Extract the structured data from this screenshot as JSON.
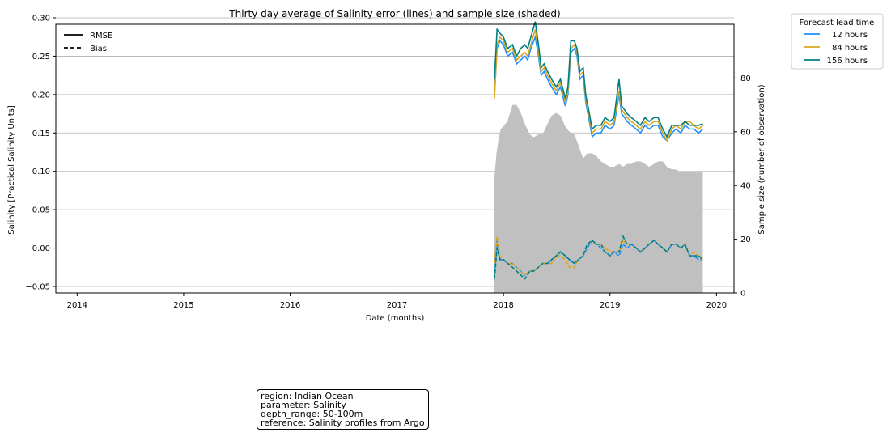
{
  "chart_data": {
    "type": "line",
    "title": "Thirty day average of Salinity error (lines) and sample size (shaded)",
    "xlabel": "Date (months)",
    "ylabel": "Salinity [Practical Salinity Units]",
    "y2label": "Sample size (number of observation)",
    "xlim": [
      "2013-10-20",
      "2020-03-01"
    ],
    "ylim": [
      -0.05,
      0.3
    ],
    "y2lim": [
      0,
      100
    ],
    "x_ticks": [
      "2014",
      "2015",
      "2016",
      "2017",
      "2018",
      "2019",
      "2020"
    ],
    "y_ticks": [
      "−0.05",
      "0.00",
      "0.05",
      "0.10",
      "0.15",
      "0.20",
      "0.25",
      "0.30"
    ],
    "y2_ticks": [
      "0",
      "20",
      "40",
      "60",
      "80"
    ],
    "grid": "horizontal",
    "metric_legend": {
      "placement": "top-left",
      "entries": [
        "RMSE",
        "Bias"
      ]
    },
    "series_legend": {
      "title": "Forecast lead time",
      "placement": "outside-top-right"
    },
    "colors": {
      "12 hours": "#1e90ff",
      "84 hours": "#daa520",
      "156 hours": "#008080",
      "sample": "#c0c0c0"
    },
    "sample_size": {
      "x": [
        "2017-12-01",
        "2017-12-08",
        "2017-12-15",
        "2017-12-22",
        "2018-01-01",
        "2018-01-15",
        "2018-02-01",
        "2018-02-15",
        "2018-03-01",
        "2018-03-15",
        "2018-04-01",
        "2018-04-15",
        "2018-05-01",
        "2018-05-15",
        "2018-06-01",
        "2018-06-15",
        "2018-07-01",
        "2018-07-15",
        "2018-08-01",
        "2018-08-15",
        "2018-09-01",
        "2018-09-15",
        "2018-10-01",
        "2018-10-15",
        "2018-11-01",
        "2018-11-15",
        "2018-12-01",
        "2018-12-15",
        "2019-01-01",
        "2019-01-15",
        "2019-02-01",
        "2019-02-15",
        "2019-03-01",
        "2019-03-15",
        "2019-04-01",
        "2019-04-15",
        "2019-05-01",
        "2019-05-15",
        "2019-06-01",
        "2019-06-15",
        "2019-07-01",
        "2019-07-15",
        "2019-08-01",
        "2019-08-15",
        "2019-09-01",
        "2019-09-15",
        "2019-10-01",
        "2019-10-15",
        "2019-11-01",
        "2019-11-15"
      ],
      "values": [
        43,
        52,
        57,
        61,
        62,
        64,
        70,
        70,
        67,
        63,
        59,
        58,
        59,
        59,
        63,
        66,
        67,
        66,
        62,
        60,
        59,
        55,
        50,
        52,
        52,
        51,
        49,
        48,
        47,
        47,
        48,
        47,
        48,
        48,
        49,
        49,
        48,
        47,
        48,
        49,
        49,
        47,
        46,
        46,
        45,
        45,
        45,
        45,
        45,
        45
      ]
    },
    "series": [
      {
        "name": "12 hours",
        "metric": "RMSE",
        "x": [
          "2017-12-01",
          "2017-12-10",
          "2017-12-20",
          "2018-01-01",
          "2018-01-15",
          "2018-02-01",
          "2018-02-15",
          "2018-03-01",
          "2018-03-15",
          "2018-03-25",
          "2018-04-05",
          "2018-04-20",
          "2018-05-01",
          "2018-05-10",
          "2018-05-20",
          "2018-06-01",
          "2018-06-15",
          "2018-07-01",
          "2018-07-15",
          "2018-08-01",
          "2018-08-10",
          "2018-08-20",
          "2018-09-01",
          "2018-09-10",
          "2018-09-20",
          "2018-10-01",
          "2018-10-10",
          "2018-10-20",
          "2018-11-01",
          "2018-11-15",
          "2018-12-01",
          "2018-12-15",
          "2019-01-01",
          "2019-01-15",
          "2019-02-01",
          "2019-02-10",
          "2019-02-20",
          "2019-03-01",
          "2019-03-15",
          "2019-04-01",
          "2019-04-15",
          "2019-05-01",
          "2019-05-15",
          "2019-06-01",
          "2019-06-15",
          "2019-07-01",
          "2019-07-15",
          "2019-08-01",
          "2019-08-15",
          "2019-09-01",
          "2019-09-15",
          "2019-10-01",
          "2019-10-15",
          "2019-11-01",
          "2019-11-15"
        ],
        "values": [
          0.2,
          0.26,
          0.27,
          0.265,
          0.25,
          0.255,
          0.24,
          0.245,
          0.25,
          0.245,
          0.26,
          0.275,
          0.25,
          0.225,
          0.23,
          0.22,
          0.21,
          0.2,
          0.21,
          0.185,
          0.2,
          0.255,
          0.26,
          0.25,
          0.22,
          0.225,
          0.19,
          0.17,
          0.145,
          0.15,
          0.15,
          0.16,
          0.155,
          0.16,
          0.2,
          0.175,
          0.17,
          0.165,
          0.16,
          0.155,
          0.15,
          0.16,
          0.155,
          0.16,
          0.16,
          0.145,
          0.14,
          0.15,
          0.155,
          0.15,
          0.16,
          0.155,
          0.155,
          0.15,
          0.155
        ]
      },
      {
        "name": "84 hours",
        "metric": "RMSE",
        "x": [
          "2017-12-01",
          "2017-12-10",
          "2017-12-20",
          "2018-01-01",
          "2018-01-15",
          "2018-02-01",
          "2018-02-15",
          "2018-03-01",
          "2018-03-15",
          "2018-03-25",
          "2018-04-05",
          "2018-04-20",
          "2018-05-01",
          "2018-05-10",
          "2018-05-20",
          "2018-06-01",
          "2018-06-15",
          "2018-07-01",
          "2018-07-15",
          "2018-08-01",
          "2018-08-10",
          "2018-08-20",
          "2018-09-01",
          "2018-09-10",
          "2018-09-20",
          "2018-10-01",
          "2018-10-10",
          "2018-10-20",
          "2018-11-01",
          "2018-11-15",
          "2018-12-01",
          "2018-12-15",
          "2019-01-01",
          "2019-01-15",
          "2019-02-01",
          "2019-02-10",
          "2019-02-20",
          "2019-03-01",
          "2019-03-15",
          "2019-04-01",
          "2019-04-15",
          "2019-05-01",
          "2019-05-15",
          "2019-06-01",
          "2019-06-15",
          "2019-07-01",
          "2019-07-15",
          "2019-08-01",
          "2019-08-15",
          "2019-09-01",
          "2019-09-15",
          "2019-10-01",
          "2019-10-15",
          "2019-11-01",
          "2019-11-15"
        ],
        "values": [
          0.195,
          0.265,
          0.275,
          0.27,
          0.255,
          0.26,
          0.245,
          0.25,
          0.255,
          0.25,
          0.265,
          0.285,
          0.255,
          0.23,
          0.235,
          0.225,
          0.215,
          0.205,
          0.215,
          0.19,
          0.205,
          0.26,
          0.265,
          0.255,
          0.225,
          0.23,
          0.195,
          0.175,
          0.15,
          0.155,
          0.155,
          0.165,
          0.16,
          0.165,
          0.205,
          0.18,
          0.175,
          0.17,
          0.165,
          0.16,
          0.155,
          0.165,
          0.16,
          0.165,
          0.165,
          0.15,
          0.14,
          0.155,
          0.16,
          0.155,
          0.165,
          0.165,
          0.16,
          0.155,
          0.16
        ]
      },
      {
        "name": "156 hours",
        "metric": "RMSE",
        "x": [
          "2017-12-01",
          "2017-12-10",
          "2017-12-20",
          "2018-01-01",
          "2018-01-15",
          "2018-02-01",
          "2018-02-15",
          "2018-03-01",
          "2018-03-15",
          "2018-03-25",
          "2018-04-05",
          "2018-04-20",
          "2018-05-01",
          "2018-05-10",
          "2018-05-20",
          "2018-06-01",
          "2018-06-15",
          "2018-07-01",
          "2018-07-15",
          "2018-08-01",
          "2018-08-10",
          "2018-08-20",
          "2018-09-01",
          "2018-09-10",
          "2018-09-20",
          "2018-10-01",
          "2018-10-10",
          "2018-10-20",
          "2018-11-01",
          "2018-11-15",
          "2018-12-01",
          "2018-12-15",
          "2019-01-01",
          "2019-01-15",
          "2019-02-01",
          "2019-02-10",
          "2019-02-20",
          "2019-03-01",
          "2019-03-15",
          "2019-04-01",
          "2019-04-15",
          "2019-05-01",
          "2019-05-15",
          "2019-06-01",
          "2019-06-15",
          "2019-07-01",
          "2019-07-15",
          "2019-08-01",
          "2019-08-15",
          "2019-09-01",
          "2019-09-15",
          "2019-10-01",
          "2019-10-15",
          "2019-11-01",
          "2019-11-15"
        ],
        "values": [
          0.22,
          0.285,
          0.28,
          0.275,
          0.26,
          0.265,
          0.25,
          0.26,
          0.265,
          0.26,
          0.275,
          0.295,
          0.265,
          0.235,
          0.24,
          0.23,
          0.22,
          0.21,
          0.22,
          0.195,
          0.21,
          0.27,
          0.27,
          0.26,
          0.23,
          0.235,
          0.2,
          0.18,
          0.155,
          0.16,
          0.16,
          0.17,
          0.165,
          0.17,
          0.22,
          0.185,
          0.18,
          0.175,
          0.17,
          0.165,
          0.16,
          0.17,
          0.165,
          0.17,
          0.17,
          0.155,
          0.145,
          0.16,
          0.16,
          0.16,
          0.165,
          0.16,
          0.16,
          0.16,
          0.162
        ]
      },
      {
        "name": "12 hours",
        "metric": "Bias",
        "x": [
          "2017-12-01",
          "2017-12-10",
          "2017-12-20",
          "2018-01-01",
          "2018-01-15",
          "2018-02-01",
          "2018-02-15",
          "2018-03-01",
          "2018-03-15",
          "2018-04-01",
          "2018-04-15",
          "2018-05-01",
          "2018-05-15",
          "2018-06-01",
          "2018-06-15",
          "2018-07-01",
          "2018-07-15",
          "2018-08-01",
          "2018-08-15",
          "2018-09-01",
          "2018-09-15",
          "2018-10-01",
          "2018-10-15",
          "2018-11-01",
          "2018-11-15",
          "2018-12-01",
          "2018-12-15",
          "2019-01-01",
          "2019-01-15",
          "2019-02-01",
          "2019-02-15",
          "2019-03-01",
          "2019-03-15",
          "2019-04-01",
          "2019-04-15",
          "2019-05-01",
          "2019-05-15",
          "2019-06-01",
          "2019-06-15",
          "2019-07-01",
          "2019-07-15",
          "2019-08-01",
          "2019-08-15",
          "2019-09-01",
          "2019-09-15",
          "2019-10-01",
          "2019-10-15",
          "2019-11-01",
          "2019-11-15"
        ],
        "values": [
          -0.03,
          0.01,
          -0.015,
          -0.015,
          -0.02,
          -0.02,
          -0.025,
          -0.03,
          -0.035,
          -0.03,
          -0.03,
          -0.025,
          -0.02,
          -0.02,
          -0.015,
          -0.01,
          -0.005,
          -0.01,
          -0.015,
          -0.02,
          -0.015,
          -0.01,
          0.0,
          0.01,
          0.005,
          0.0,
          -0.005,
          -0.01,
          -0.005,
          -0.01,
          0.005,
          0.0,
          0.005,
          0.0,
          -0.005,
          0.0,
          0.005,
          0.01,
          0.005,
          0.0,
          -0.005,
          0.005,
          0.005,
          0.0,
          0.005,
          -0.01,
          -0.01,
          -0.015,
          -0.015
        ]
      },
      {
        "name": "84 hours",
        "metric": "Bias",
        "x": [
          "2017-12-01",
          "2017-12-10",
          "2017-12-20",
          "2018-01-01",
          "2018-01-15",
          "2018-02-01",
          "2018-02-15",
          "2018-03-01",
          "2018-03-15",
          "2018-04-01",
          "2018-04-15",
          "2018-05-01",
          "2018-05-15",
          "2018-06-01",
          "2018-06-15",
          "2018-07-01",
          "2018-07-15",
          "2018-08-01",
          "2018-08-15",
          "2018-09-01",
          "2018-09-15",
          "2018-10-01",
          "2018-10-15",
          "2018-11-01",
          "2018-11-15",
          "2018-12-01",
          "2018-12-15",
          "2019-01-01",
          "2019-01-15",
          "2019-02-01",
          "2019-02-15",
          "2019-03-01",
          "2019-03-15",
          "2019-04-01",
          "2019-04-15",
          "2019-05-01",
          "2019-05-15",
          "2019-06-01",
          "2019-06-15",
          "2019-07-01",
          "2019-07-15",
          "2019-08-01",
          "2019-08-15",
          "2019-09-01",
          "2019-09-15",
          "2019-10-01",
          "2019-10-15",
          "2019-11-01",
          "2019-11-15"
        ],
        "values": [
          -0.02,
          0.015,
          -0.01,
          -0.015,
          -0.02,
          -0.02,
          -0.025,
          -0.03,
          -0.035,
          -0.03,
          -0.03,
          -0.025,
          -0.02,
          -0.02,
          -0.02,
          -0.01,
          -0.01,
          -0.015,
          -0.025,
          -0.025,
          -0.015,
          -0.01,
          0.005,
          0.01,
          0.005,
          0.005,
          0.0,
          -0.005,
          -0.005,
          -0.005,
          0.01,
          0.005,
          0.005,
          0.0,
          -0.005,
          0.0,
          0.005,
          0.01,
          0.005,
          0.0,
          -0.005,
          0.005,
          0.005,
          0.0,
          0.005,
          -0.01,
          -0.005,
          -0.01,
          -0.015
        ]
      },
      {
        "name": "156 hours",
        "metric": "Bias",
        "x": [
          "2017-12-01",
          "2017-12-10",
          "2017-12-20",
          "2018-01-01",
          "2018-01-15",
          "2018-02-01",
          "2018-02-15",
          "2018-03-01",
          "2018-03-15",
          "2018-04-01",
          "2018-04-15",
          "2018-05-01",
          "2018-05-15",
          "2018-06-01",
          "2018-06-15",
          "2018-07-01",
          "2018-07-15",
          "2018-08-01",
          "2018-08-15",
          "2018-09-01",
          "2018-09-15",
          "2018-10-01",
          "2018-10-15",
          "2018-11-01",
          "2018-11-15",
          "2018-12-01",
          "2018-12-15",
          "2019-01-01",
          "2019-01-15",
          "2019-02-01",
          "2019-02-15",
          "2019-03-01",
          "2019-03-15",
          "2019-04-01",
          "2019-04-15",
          "2019-05-01",
          "2019-05-15",
          "2019-06-01",
          "2019-06-15",
          "2019-07-01",
          "2019-07-15",
          "2019-08-01",
          "2019-08-15",
          "2019-09-01",
          "2019-09-15",
          "2019-10-01",
          "2019-10-15",
          "2019-11-01",
          "2019-11-15"
        ],
        "values": [
          -0.04,
          0.0,
          -0.015,
          -0.015,
          -0.02,
          -0.025,
          -0.03,
          -0.035,
          -0.04,
          -0.03,
          -0.03,
          -0.025,
          -0.02,
          -0.02,
          -0.015,
          -0.01,
          -0.005,
          -0.01,
          -0.015,
          -0.02,
          -0.015,
          -0.01,
          0.005,
          0.01,
          0.005,
          0.005,
          -0.005,
          -0.01,
          -0.005,
          -0.005,
          0.015,
          0.005,
          0.005,
          0.0,
          -0.005,
          0.0,
          0.005,
          0.01,
          0.005,
          0.0,
          -0.005,
          0.005,
          0.005,
          0.0,
          0.005,
          -0.01,
          -0.01,
          -0.01,
          -0.015
        ]
      }
    ]
  },
  "info_box": {
    "lines": [
      "region: Indian Ocean",
      "parameter: Salinity",
      "depth_range: 50-100m",
      "reference: Salinity profiles from Argo"
    ]
  }
}
